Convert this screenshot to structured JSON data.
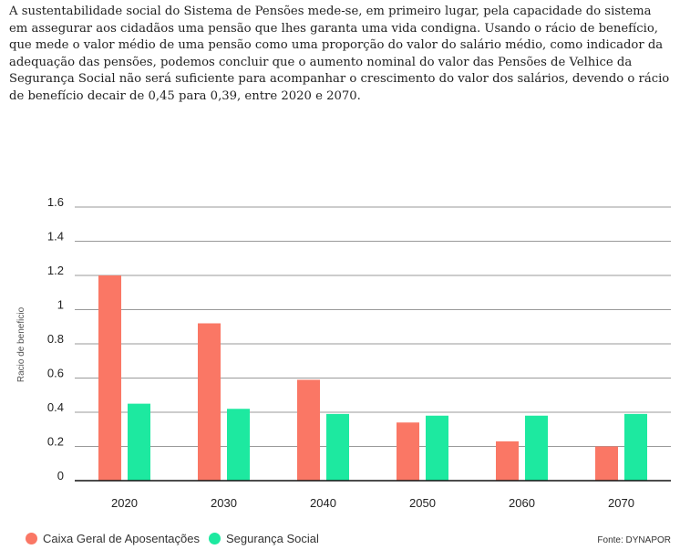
{
  "intro_text": "A sustentabilidade social do Sistema de Pensões mede-se, em primeiro lugar, pela capacidade do sistema em assegurar aos cidadãos uma pensão que lhes garanta uma vida condigna. Usando o rácio de benefício, que mede o valor médio de uma pensão como uma proporção do valor do salário médio, como indicador da adequação das pensões, podemos concluir que o aumento nominal do valor das Pensões de Velhice da Segurança Social não será suficiente para acompanhar o crescimento do valor dos salários, devendo o rácio de benefício decair de 0,45 para 0,39, entre 2020 e 2070.",
  "source": "Fonte: DYNAPOR",
  "chart_data": {
    "type": "bar",
    "categories": [
      "2020",
      "2030",
      "2040",
      "2050",
      "2060",
      "2070"
    ],
    "series": [
      {
        "name": "Caixa Geral de Aposentações",
        "values": [
          1.2,
          0.92,
          0.59,
          0.34,
          0.23,
          0.2
        ],
        "color": "#fa7765"
      },
      {
        "name": "Segurança Social",
        "values": [
          0.45,
          0.42,
          0.39,
          0.38,
          0.38,
          0.39
        ],
        "color": "#1de9a0"
      }
    ],
    "ylabel": "Racio de beneficio",
    "yticks": [
      "0",
      "0.2",
      "0.4",
      "0.6",
      "0.8",
      "1",
      "1.2",
      "1.4",
      "1.6"
    ],
    "ylim": [
      0,
      1.6
    ],
    "grid": true,
    "legend_position": "bottom-left"
  }
}
